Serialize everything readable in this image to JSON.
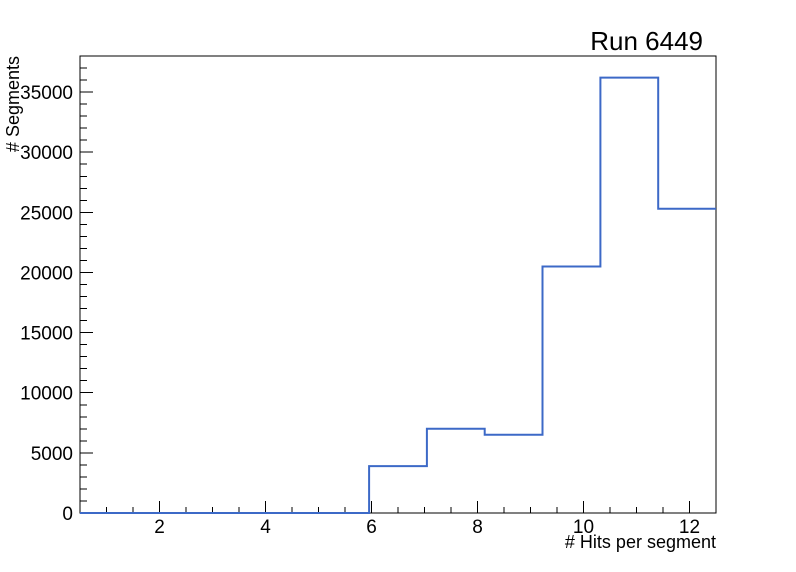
{
  "canvas": {
    "background": "#ffffff",
    "frame_color": "#000000"
  },
  "chart_data": {
    "type": "bar",
    "subtype": "step-histogram-outline",
    "title": "Run 6449",
    "xlabel": "# Hits per segment",
    "ylabel": "# Segments",
    "xlim": [
      0.5,
      12.5
    ],
    "ylim": [
      0,
      38000
    ],
    "bin_edges": [
      0.5,
      1.591,
      2.682,
      3.773,
      4.864,
      5.955,
      7.045,
      8.136,
      9.227,
      10.318,
      11.409,
      12.5
    ],
    "values": [
      0,
      0,
      0,
      0,
      0,
      3900,
      7000,
      6500,
      20500,
      36200,
      25300
    ],
    "x_major_ticks": [
      2,
      4,
      6,
      8,
      10,
      12
    ],
    "x_minor_step": 0.5,
    "y_major_ticks": [
      0,
      5000,
      10000,
      15000,
      20000,
      25000,
      30000,
      35000
    ],
    "y_minor_step": 1000,
    "grid": false,
    "legend": null,
    "line_color": "#3c69c7",
    "line_width": 2,
    "axis_color": "#000000"
  }
}
